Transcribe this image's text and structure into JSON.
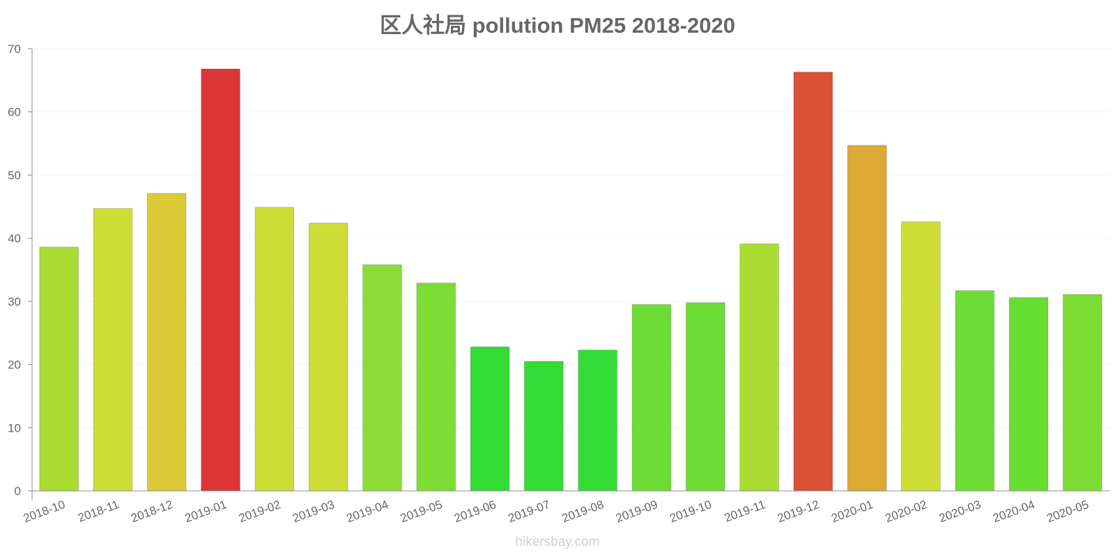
{
  "footer": {
    "watermark": "hikersbay.com"
  },
  "chart_data": {
    "type": "bar",
    "title": "区人社局 pollution PM25 2018-2020",
    "xlabel": "",
    "ylabel": "",
    "ylim": [
      0,
      70
    ],
    "yticks": [
      0,
      10,
      20,
      30,
      40,
      50,
      60,
      70
    ],
    "grid": true,
    "categories": [
      "2018-10",
      "2018-11",
      "2018-12",
      "2019-01",
      "2019-02",
      "2019-03",
      "2019-04",
      "2019-05",
      "2019-06",
      "2019-07",
      "2019-08",
      "2019-09",
      "2019-10",
      "2019-11",
      "2019-12",
      "2020-01",
      "2020-02",
      "2020-03",
      "2020-04",
      "2020-05"
    ],
    "values": [
      38.6,
      44.7,
      47.1,
      66.8,
      44.9,
      42.4,
      35.8,
      32.9,
      22.8,
      20.5,
      22.3,
      29.5,
      29.8,
      39.1,
      66.3,
      54.7,
      42.6,
      31.7,
      30.6,
      31.1
    ],
    "colors": [
      "#aadd33",
      "#cedd36",
      "#dbc935",
      "#dc3535",
      "#cedd36",
      "#cedd36",
      "#8bdd35",
      "#7ddd35",
      "#33dd36",
      "#33dd36",
      "#33dd36",
      "#6bdd36",
      "#6bdd36",
      "#aadd33",
      "#dc5035",
      "#dca935",
      "#cedd36",
      "#6bdd36",
      "#66dd33",
      "#7ddd35"
    ]
  }
}
